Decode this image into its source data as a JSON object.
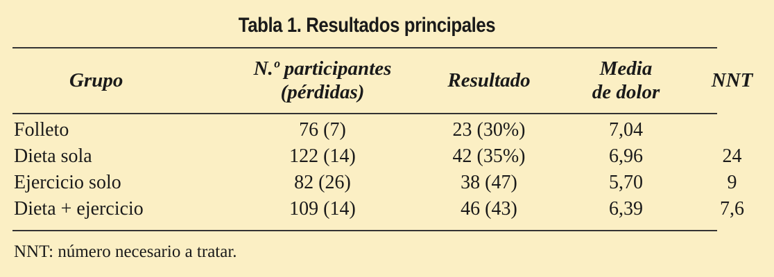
{
  "table": {
    "title": "Tabla 1. Resultados principales",
    "headers": {
      "grupo": "Grupo",
      "participantes_1": "N.º participantes",
      "participantes_2": "(pérdidas)",
      "resultado": "Resultado",
      "media_1": "Media",
      "media_2": "de dolor",
      "nnt": "NNT"
    },
    "rows": [
      {
        "grupo": "Folleto",
        "participantes": "76 (7)",
        "resultado": "23 (30%)",
        "media": "7,04",
        "nnt": ""
      },
      {
        "grupo": "Dieta sola",
        "participantes": "122 (14)",
        "resultado": "42 (35%)",
        "media": "6,96",
        "nnt": "24"
      },
      {
        "grupo": "Ejercicio solo",
        "participantes": "82 (26)",
        "resultado": "38 (47)",
        "media": "5,70",
        "nnt": "9"
      },
      {
        "grupo": "Dieta + ejercicio",
        "participantes": "109 (14)",
        "resultado": "46 (43)",
        "media": "6,39",
        "nnt": "7,6"
      }
    ],
    "footnote": "NNT: número necesario a tratar."
  }
}
